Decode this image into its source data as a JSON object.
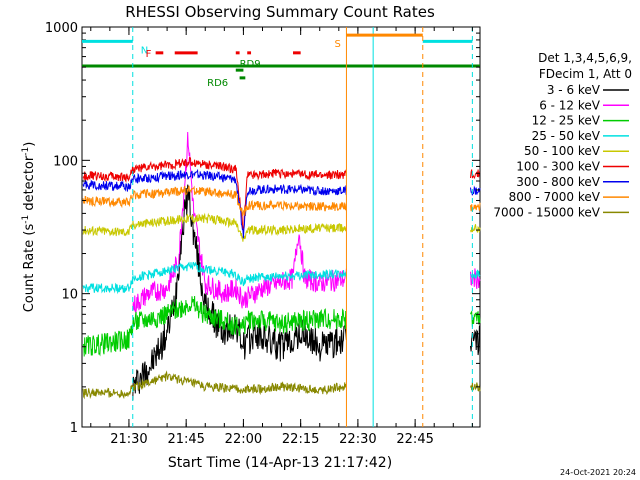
{
  "chart_data": {
    "type": "line",
    "title": "RHESSI Observing Summary Count Rates",
    "xlabel": "Start Time (14-Apr-13 21:17:42)",
    "ylabel_parts": {
      "pre": "Count Rate (s",
      "sup1": "-1",
      "mid": " detector",
      "sup2": "-1",
      "post": ")"
    },
    "ylog": true,
    "ylim": [
      1,
      1000
    ],
    "xlim": [
      "21:17:42",
      "23:02:00"
    ],
    "x_ticks": [
      "21:30",
      "21:45",
      "22:00",
      "22:15",
      "22:30",
      "22:45"
    ],
    "y_ticks": [
      "1",
      "10",
      "100",
      "1000"
    ],
    "timestamp": "24-Oct-2021 20:24",
    "legend_header": [
      "Det 1,3,4,5,6,9,",
      "FDecim 1, Att 0"
    ],
    "series": [
      {
        "name": "3 - 6 keV",
        "color": "#000000",
        "points": [
          [
            "21:31:00",
            2
          ],
          [
            "21:36:00",
            3
          ],
          [
            "21:40:00",
            5
          ],
          [
            "21:42:00",
            9
          ],
          [
            "21:44:00",
            30
          ],
          [
            "21:45:30",
            60
          ],
          [
            "21:47:00",
            28
          ],
          [
            "21:50:00",
            8
          ],
          [
            "21:55:00",
            5
          ],
          [
            "21:58:00",
            6
          ],
          [
            "22:00:00",
            4
          ],
          [
            "22:03:00",
            5
          ],
          [
            "22:10:00",
            4
          ],
          [
            "22:15:00",
            5
          ],
          [
            "22:20:00",
            4
          ],
          [
            "22:27:00",
            4.5
          ]
        ]
      },
      {
        "name": "6 - 12 keV",
        "color": "#ff00ff",
        "points": [
          [
            "21:31:00",
            8
          ],
          [
            "21:35:00",
            10
          ],
          [
            "21:40:00",
            11
          ],
          [
            "21:43:00",
            18
          ],
          [
            "21:45:30",
            150
          ],
          [
            "21:47:00",
            40
          ],
          [
            "21:50:00",
            12
          ],
          [
            "21:55:00",
            10
          ],
          [
            "21:58:00",
            11
          ],
          [
            "22:00:00",
            9
          ],
          [
            "22:05:00",
            11
          ],
          [
            "22:13:00",
            13
          ],
          [
            "22:14:30",
            30
          ],
          [
            "22:16:00",
            13
          ],
          [
            "22:20:00",
            12
          ],
          [
            "22:27:00",
            13
          ]
        ]
      },
      {
        "name": "12 - 25 keV",
        "color": "#00cc00",
        "points": [
          [
            "21:18:00",
            4
          ],
          [
            "21:30:00",
            4.5
          ],
          [
            "21:31:00",
            6
          ],
          [
            "21:40:00",
            7
          ],
          [
            "21:46:00",
            8.5
          ],
          [
            "21:50:00",
            7
          ],
          [
            "22:00:00",
            5.5
          ],
          [
            "22:01:00",
            6.5
          ],
          [
            "22:10:00",
            6
          ],
          [
            "22:20:00",
            6.5
          ],
          [
            "22:27:00",
            6.5
          ]
        ]
      },
      {
        "name": "25 - 50 keV",
        "color": "#00e0e0",
        "points": [
          [
            "21:18:00",
            11
          ],
          [
            "21:30:00",
            11
          ],
          [
            "21:31:00",
            13
          ],
          [
            "21:40:00",
            15
          ],
          [
            "21:46:00",
            16
          ],
          [
            "21:52:00",
            15
          ],
          [
            "21:58:00",
            14
          ],
          [
            "22:00:00",
            12
          ],
          [
            "22:01:00",
            13
          ],
          [
            "22:10:00",
            13.5
          ],
          [
            "22:20:00",
            14
          ],
          [
            "22:27:00",
            14
          ]
        ]
      },
      {
        "name": "50 - 100 keV",
        "color": "#c8c800",
        "points": [
          [
            "21:18:00",
            30
          ],
          [
            "21:30:00",
            29
          ],
          [
            "21:31:00",
            33
          ],
          [
            "21:40:00",
            35
          ],
          [
            "21:46:00",
            37
          ],
          [
            "21:52:00",
            36
          ],
          [
            "21:58:00",
            34
          ],
          [
            "22:00:00",
            25
          ],
          [
            "22:01:00",
            30
          ],
          [
            "22:10:00",
            30
          ],
          [
            "22:20:00",
            31
          ],
          [
            "22:27:00",
            31
          ]
        ]
      },
      {
        "name": "100 - 300 keV",
        "color": "#ee0000",
        "points": [
          [
            "21:18:00",
            77
          ],
          [
            "21:30:00",
            75
          ],
          [
            "21:31:00",
            86
          ],
          [
            "21:40:00",
            92
          ],
          [
            "21:46:00",
            97
          ],
          [
            "21:52:00",
            92
          ],
          [
            "21:58:00",
            86
          ],
          [
            "22:00:00",
            30
          ],
          [
            "22:01:00",
            78
          ],
          [
            "22:10:00",
            80
          ],
          [
            "22:20:00",
            77
          ],
          [
            "22:27:00",
            79
          ]
        ]
      },
      {
        "name": "300 - 800 keV",
        "color": "#0000ee",
        "points": [
          [
            "21:18:00",
            66
          ],
          [
            "21:30:00",
            63
          ],
          [
            "21:31:00",
            72
          ],
          [
            "21:40:00",
            76
          ],
          [
            "21:46:00",
            79
          ],
          [
            "21:52:00",
            76
          ],
          [
            "21:58:00",
            72
          ],
          [
            "22:00:00",
            27
          ],
          [
            "22:01:00",
            60
          ],
          [
            "22:10:00",
            61
          ],
          [
            "22:20:00",
            59
          ],
          [
            "22:27:00",
            59
          ]
        ]
      },
      {
        "name": "800 - 7000 keV",
        "color": "#ff8800",
        "points": [
          [
            "21:18:00",
            50
          ],
          [
            "21:30:00",
            48
          ],
          [
            "21:31:00",
            55
          ],
          [
            "21:40:00",
            57
          ],
          [
            "21:46:00",
            60
          ],
          [
            "21:52:00",
            57
          ],
          [
            "21:58:00",
            55
          ],
          [
            "22:00:00",
            38
          ],
          [
            "22:01:00",
            46
          ],
          [
            "22:10:00",
            46
          ],
          [
            "22:20:00",
            45
          ],
          [
            "22:27:00",
            45
          ]
        ]
      },
      {
        "name": "7000 - 15000 keV",
        "color": "#888800",
        "points": [
          [
            "21:18:00",
            1.8
          ],
          [
            "21:30:00",
            1.8
          ],
          [
            "21:31:00",
            2
          ],
          [
            "21:40:00",
            2.4
          ],
          [
            "21:50:00",
            2
          ],
          [
            "22:00:00",
            1.9
          ],
          [
            "22:10:00",
            2
          ],
          [
            "22:20:00",
            1.9
          ],
          [
            "22:27:00",
            2
          ]
        ]
      }
    ],
    "annotations": [
      {
        "label": "N",
        "color": "#00e0e0",
        "start": "21:17:42",
        "end": "21:31:00",
        "y": 780
      },
      {
        "label": "F",
        "color": "#ee0000",
        "segments": [
          [
            "21:37:00",
            "21:39:00"
          ],
          [
            "21:42:00",
            "21:48:00"
          ],
          [
            "21:58:00",
            "21:59:00"
          ],
          [
            "22:01:00",
            "22:02:00"
          ],
          [
            "22:13:00",
            "22:15:00"
          ]
        ],
        "y": 640
      },
      {
        "label": "RD9",
        "color": "#008800",
        "y": 500
      },
      {
        "label": "RD6",
        "color": "#008800",
        "y": 430
      },
      {
        "label": "S",
        "color": "#ff8800",
        "start": "22:27:00",
        "end": "22:47:00",
        "y": 870
      }
    ],
    "bands": [
      {
        "color": "#008800",
        "start": "21:17:42",
        "end": "23:02:00",
        "y": 510
      },
      {
        "color": "#00e0e0",
        "start": "22:47:00",
        "end": "23:00:00",
        "y": 780
      }
    ],
    "vlines": [
      {
        "color": "#00e0e0",
        "t": "21:31:00",
        "dash": true
      },
      {
        "color": "#ff8800",
        "t": "22:27:00",
        "dash": false
      },
      {
        "color": "#00e0e0",
        "t": "22:34:00",
        "dash": false
      },
      {
        "color": "#ff8800",
        "t": "22:47:00",
        "dash": true
      },
      {
        "color": "#00e0e0",
        "t": "23:00:00",
        "dash": true
      }
    ],
    "resume_t": "22:59:30"
  }
}
